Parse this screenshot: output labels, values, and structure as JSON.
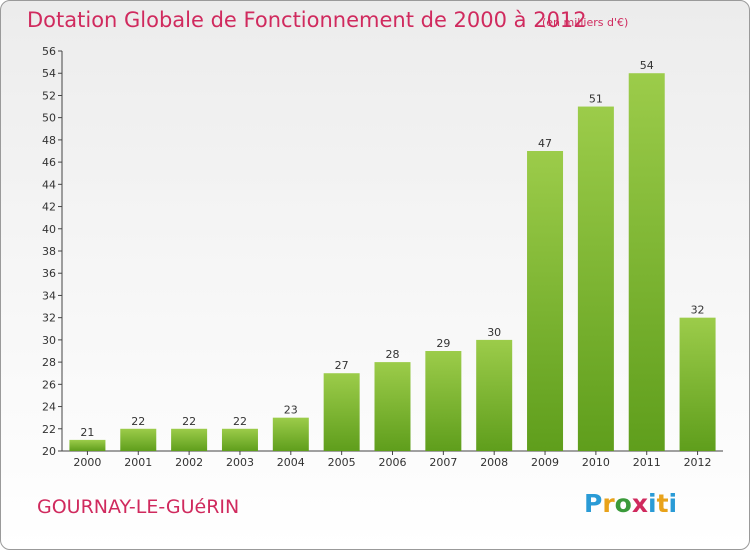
{
  "header": {
    "title": "Dotation Globale de Fonctionnement de 2000 à 2012",
    "subtitle": "(en milliers d'€)"
  },
  "footer": {
    "commune": "GOURNAY-LE-GUéRIN",
    "brand_letters": [
      "P",
      "r",
      "o",
      "x",
      "i",
      "t",
      "i"
    ],
    "brand_colors": [
      "#2a9bd6",
      "#e8a21a",
      "#3a9a3a",
      "#d02a5e",
      "#2a9bd6",
      "#e8a21a",
      "#2a9bd6"
    ]
  },
  "chart_data": {
    "type": "bar",
    "title": "Dotation Globale de Fonctionnement de 2000 à 2012",
    "subtitle": "(en milliers d'€)",
    "xlabel": "",
    "ylabel": "",
    "categories": [
      "2000",
      "2001",
      "2002",
      "2003",
      "2004",
      "2005",
      "2006",
      "2007",
      "2008",
      "2009",
      "2010",
      "2011",
      "2012"
    ],
    "values": [
      21,
      22,
      22,
      22,
      23,
      27,
      28,
      29,
      30,
      47,
      51,
      54,
      32
    ],
    "ylim": [
      20,
      56
    ],
    "ytick_step": 2,
    "grid": false,
    "legend": "none",
    "colors": {
      "bar_light": "#9ccc4a",
      "bar_dark": "#5f9e1c",
      "axis": "#444444",
      "text": "#333333",
      "accent": "#d02a5e"
    }
  }
}
